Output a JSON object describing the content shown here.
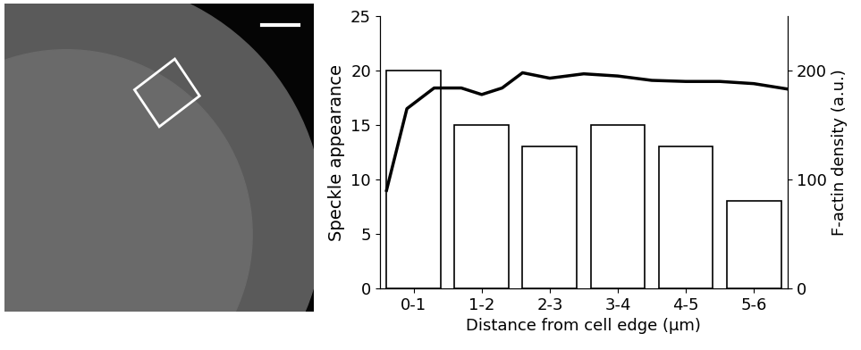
{
  "chart_data": {
    "type": "bar",
    "x_label": "Distance from cell edge (µm)",
    "y_label": "Speckle appearance",
    "y2_label": "F-actin density (a.u.)",
    "categories": [
      "0-1",
      "1-2",
      "2-3",
      "3-4",
      "4-5",
      "5-6"
    ],
    "series": [
      {
        "name": "Speckle appearance",
        "type": "bar",
        "color": "#ffffff",
        "values": [
          20,
          15,
          13,
          15,
          13,
          8
        ]
      },
      {
        "name": "F-actin density",
        "type": "line",
        "axis": "y2",
        "color": "#000000",
        "x": [
          0.1,
          0.4,
          0.8,
          1.2,
          1.5,
          1.8,
          2.1,
          2.5,
          3.0,
          3.5,
          4.0,
          4.5,
          5.0,
          5.5,
          6.0
        ],
        "values": [
          90,
          165,
          184,
          184,
          178,
          184,
          198,
          193,
          197,
          195,
          191,
          190,
          190,
          188,
          183
        ]
      }
    ],
    "xlim": [
      0,
      6
    ],
    "ylim": [
      0,
      25
    ],
    "yticks": [
      0,
      5,
      10,
      15,
      20,
      25
    ],
    "y2lim": [
      0,
      250
    ],
    "y2ticks": [
      0,
      100,
      200
    ]
  }
}
